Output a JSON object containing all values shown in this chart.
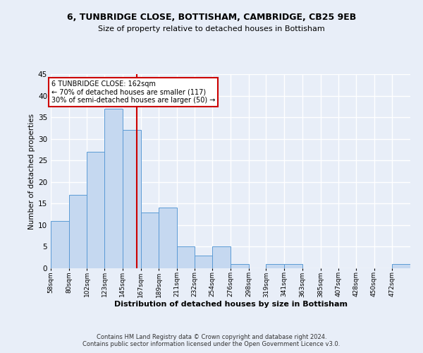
{
  "title1": "6, TUNBRIDGE CLOSE, BOTTISHAM, CAMBRIDGE, CB25 9EB",
  "title2": "Size of property relative to detached houses in Bottisham",
  "xlabel": "Distribution of detached houses by size in Bottisham",
  "ylabel": "Number of detached properties",
  "bin_edges": [
    58,
    80,
    102,
    123,
    145,
    167,
    189,
    211,
    232,
    254,
    276,
    298,
    319,
    341,
    363,
    385,
    407,
    428,
    450,
    472,
    494
  ],
  "counts": [
    11,
    17,
    27,
    37,
    32,
    13,
    14,
    5,
    3,
    5,
    1,
    0,
    1,
    1,
    0,
    0,
    0,
    0,
    0,
    1
  ],
  "bar_color": "#c5d8f0",
  "bar_edge_color": "#5b9bd5",
  "property_size": 162,
  "vline_color": "#cc0000",
  "annotation_line1": "6 TUNBRIDGE CLOSE: 162sqm",
  "annotation_line2": "← 70% of detached houses are smaller (117)",
  "annotation_line3": "30% of semi-detached houses are larger (50) →",
  "annotation_box_color": "#cc0000",
  "ylim": [
    0,
    45
  ],
  "yticks": [
    0,
    5,
    10,
    15,
    20,
    25,
    30,
    35,
    40,
    45
  ],
  "footer_text": "Contains HM Land Registry data © Crown copyright and database right 2024.\nContains public sector information licensed under the Open Government Licence v3.0.",
  "background_color": "#e8eef8",
  "plot_bg_color": "#e8eef8",
  "grid_color": "#ffffff"
}
